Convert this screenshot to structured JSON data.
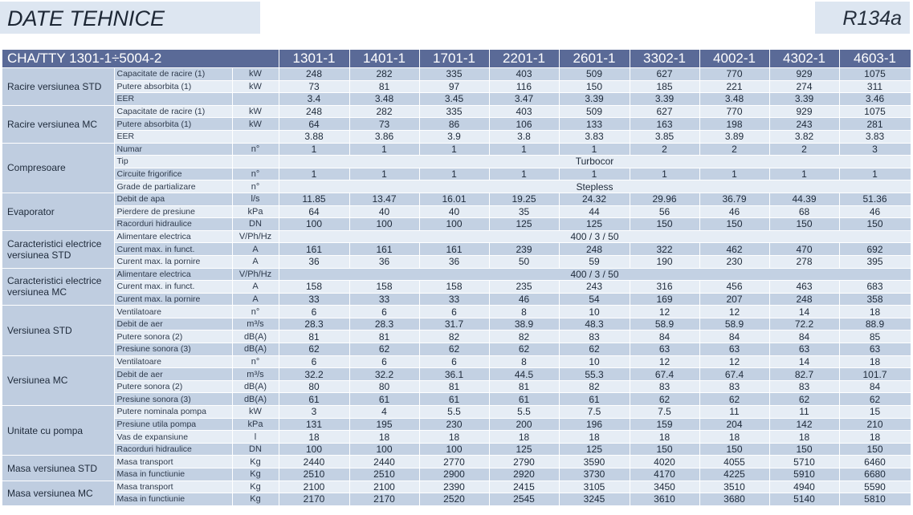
{
  "title": "DATE TEHNICE",
  "refrigerant": "R134a",
  "header": {
    "series": "CHA/TTY 1301-1÷5004-2",
    "models": [
      "1301-1",
      "1401-1",
      "1701-1",
      "2201-1",
      "2601-1",
      "3302-1",
      "4002-1",
      "4302-1",
      "4603-1"
    ]
  },
  "groups": [
    {
      "name": "Racire versiunea STD",
      "rows": [
        {
          "param": "Capacitate de racire (1)",
          "unit": "kW",
          "values": [
            "248",
            "282",
            "335",
            "403",
            "509",
            "627",
            "770",
            "929",
            "1075"
          ]
        },
        {
          "param": "Putere absorbita (1)",
          "unit": "kW",
          "values": [
            "73",
            "81",
            "97",
            "116",
            "150",
            "185",
            "221",
            "274",
            "311"
          ]
        },
        {
          "param": "EER",
          "unit": "",
          "values": [
            "3.4",
            "3.48",
            "3.45",
            "3.47",
            "3.39",
            "3.39",
            "3.48",
            "3.39",
            "3.46"
          ]
        }
      ]
    },
    {
      "name": "Racire versiunea MC",
      "rows": [
        {
          "param": "Capacitate de racire (1)",
          "unit": "kW",
          "values": [
            "248",
            "282",
            "335",
            "403",
            "509",
            "627",
            "770",
            "929",
            "1075"
          ]
        },
        {
          "param": "Putere absorbita (1)",
          "unit": "kW",
          "values": [
            "64",
            "73",
            "86",
            "106",
            "133",
            "163",
            "198",
            "243",
            "281"
          ]
        },
        {
          "param": "EER",
          "unit": "",
          "values": [
            "3.88",
            "3.86",
            "3.9",
            "3.8",
            "3.83",
            "3.85",
            "3.89",
            "3.82",
            "3.83"
          ]
        }
      ]
    },
    {
      "name": "Compresoare",
      "rows": [
        {
          "param": "Numar",
          "unit": "n°",
          "values": [
            "1",
            "1",
            "1",
            "1",
            "1",
            "2",
            "2",
            "2",
            "3"
          ]
        },
        {
          "param": "Tip",
          "unit": "",
          "merged": "Turbocor"
        },
        {
          "param": "Circuite frigorifice",
          "unit": "n°",
          "values": [
            "1",
            "1",
            "1",
            "1",
            "1",
            "1",
            "1",
            "1",
            "1"
          ]
        },
        {
          "param": "Grade de partializare",
          "unit": "n°",
          "merged": "Stepless"
        }
      ]
    },
    {
      "name": "Evaporator",
      "rows": [
        {
          "param": "Debit de apa",
          "unit": "l/s",
          "values": [
            "11.85",
            "13.47",
            "16.01",
            "19.25",
            "24.32",
            "29.96",
            "36.79",
            "44.39",
            "51.36"
          ]
        },
        {
          "param": "Pierdere de presiune",
          "unit": "kPa",
          "values": [
            "64",
            "40",
            "40",
            "35",
            "44",
            "56",
            "46",
            "68",
            "46"
          ]
        },
        {
          "param": "Racorduri hidraulice",
          "unit": "DN",
          "values": [
            "100",
            "100",
            "100",
            "125",
            "125",
            "150",
            "150",
            "150",
            "150"
          ]
        }
      ]
    },
    {
      "name": "Caracteristici electrice versiunea STD",
      "rows": [
        {
          "param": "Alimentare electrica",
          "unit": "V/Ph/Hz",
          "merged": "400 / 3 / 50"
        },
        {
          "param": "Curent max. in funct.",
          "unit": "A",
          "values": [
            "161",
            "161",
            "161",
            "239",
            "248",
            "322",
            "462",
            "470",
            "692"
          ]
        },
        {
          "param": "Curent max. la pornire",
          "unit": "A",
          "values": [
            "36",
            "36",
            "36",
            "50",
            "59",
            "190",
            "230",
            "278",
            "395"
          ]
        }
      ]
    },
    {
      "name": "Caracteristici electrice versiunea MC",
      "rows": [
        {
          "param": "Alimentare electrica",
          "unit": "V/Ph/Hz",
          "merged": "400 / 3 / 50"
        },
        {
          "param": "Curent max. in funct.",
          "unit": "A",
          "values": [
            "158",
            "158",
            "158",
            "235",
            "243",
            "316",
            "456",
            "463",
            "683"
          ]
        },
        {
          "param": "Curent max. la pornire",
          "unit": "A",
          "values": [
            "33",
            "33",
            "33",
            "46",
            "54",
            "169",
            "207",
            "248",
            "358"
          ]
        }
      ]
    },
    {
      "name": "Versiunea STD",
      "rows": [
        {
          "param": "Ventilatoare",
          "unit": "n°",
          "values": [
            "6",
            "6",
            "6",
            "8",
            "10",
            "12",
            "12",
            "14",
            "18"
          ]
        },
        {
          "param": "Debit de aer",
          "unit": "m³/s",
          "values": [
            "28.3",
            "28.3",
            "31.7",
            "38.9",
            "48.3",
            "58.9",
            "58.9",
            "72.2",
            "88.9"
          ]
        },
        {
          "param": "Putere sonora (2)",
          "unit": "dB(A)",
          "values": [
            "81",
            "81",
            "82",
            "82",
            "83",
            "84",
            "84",
            "84",
            "85"
          ]
        },
        {
          "param": "Presiune sonora (3)",
          "unit": "dB(A)",
          "values": [
            "62",
            "62",
            "62",
            "62",
            "62",
            "63",
            "63",
            "63",
            "63"
          ]
        }
      ]
    },
    {
      "name": "Versiunea MC",
      "rows": [
        {
          "param": "Ventilatoare",
          "unit": "n°",
          "values": [
            "6",
            "6",
            "6",
            "8",
            "10",
            "12",
            "12",
            "14",
            "18"
          ]
        },
        {
          "param": "Debit de aer",
          "unit": "m³/s",
          "values": [
            "32.2",
            "32.2",
            "36.1",
            "44.5",
            "55.3",
            "67.4",
            "67.4",
            "82.7",
            "101.7"
          ]
        },
        {
          "param": "Putere sonora (2)",
          "unit": "dB(A)",
          "values": [
            "80",
            "80",
            "81",
            "81",
            "82",
            "83",
            "83",
            "83",
            "84"
          ]
        },
        {
          "param": "Presiune sonora (3)",
          "unit": "dB(A)",
          "values": [
            "61",
            "61",
            "61",
            "61",
            "61",
            "62",
            "62",
            "62",
            "62"
          ]
        }
      ]
    },
    {
      "name": "Unitate cu pompa",
      "rows": [
        {
          "param": "Putere nominala pompa",
          "unit": "kW",
          "values": [
            "3",
            "4",
            "5.5",
            "5.5",
            "7.5",
            "7.5",
            "11",
            "11",
            "15"
          ]
        },
        {
          "param": "Presiune utila pompa",
          "unit": "kPa",
          "values": [
            "131",
            "195",
            "230",
            "200",
            "196",
            "159",
            "204",
            "142",
            "210"
          ]
        },
        {
          "param": "Vas de expansiune",
          "unit": "l",
          "values": [
            "18",
            "18",
            "18",
            "18",
            "18",
            "18",
            "18",
            "18",
            "18"
          ]
        },
        {
          "param": "Racorduri hidraulice",
          "unit": "DN",
          "values": [
            "100",
            "100",
            "100",
            "125",
            "125",
            "150",
            "150",
            "150",
            "150"
          ]
        }
      ]
    },
    {
      "name": "Masa versiunea STD",
      "rows": [
        {
          "param": "Masa transport",
          "unit": "Kg",
          "values": [
            "2440",
            "2440",
            "2770",
            "2790",
            "3590",
            "4020",
            "4055",
            "5710",
            "6460"
          ]
        },
        {
          "param": "Masa in functiunie",
          "unit": "Kg",
          "values": [
            "2510",
            "2510",
            "2900",
            "2920",
            "3730",
            "4170",
            "4225",
            "5910",
            "6680"
          ]
        }
      ]
    },
    {
      "name": "Masa versiunea MC",
      "rows": [
        {
          "param": "Masa transport",
          "unit": "Kg",
          "values": [
            "2100",
            "2100",
            "2390",
            "2415",
            "3105",
            "3450",
            "3510",
            "4940",
            "5590"
          ]
        },
        {
          "param": "Masa in functiunie",
          "unit": "Kg",
          "values": [
            "2170",
            "2170",
            "2520",
            "2545",
            "3245",
            "3610",
            "3680",
            "5140",
            "5810"
          ]
        }
      ]
    }
  ]
}
